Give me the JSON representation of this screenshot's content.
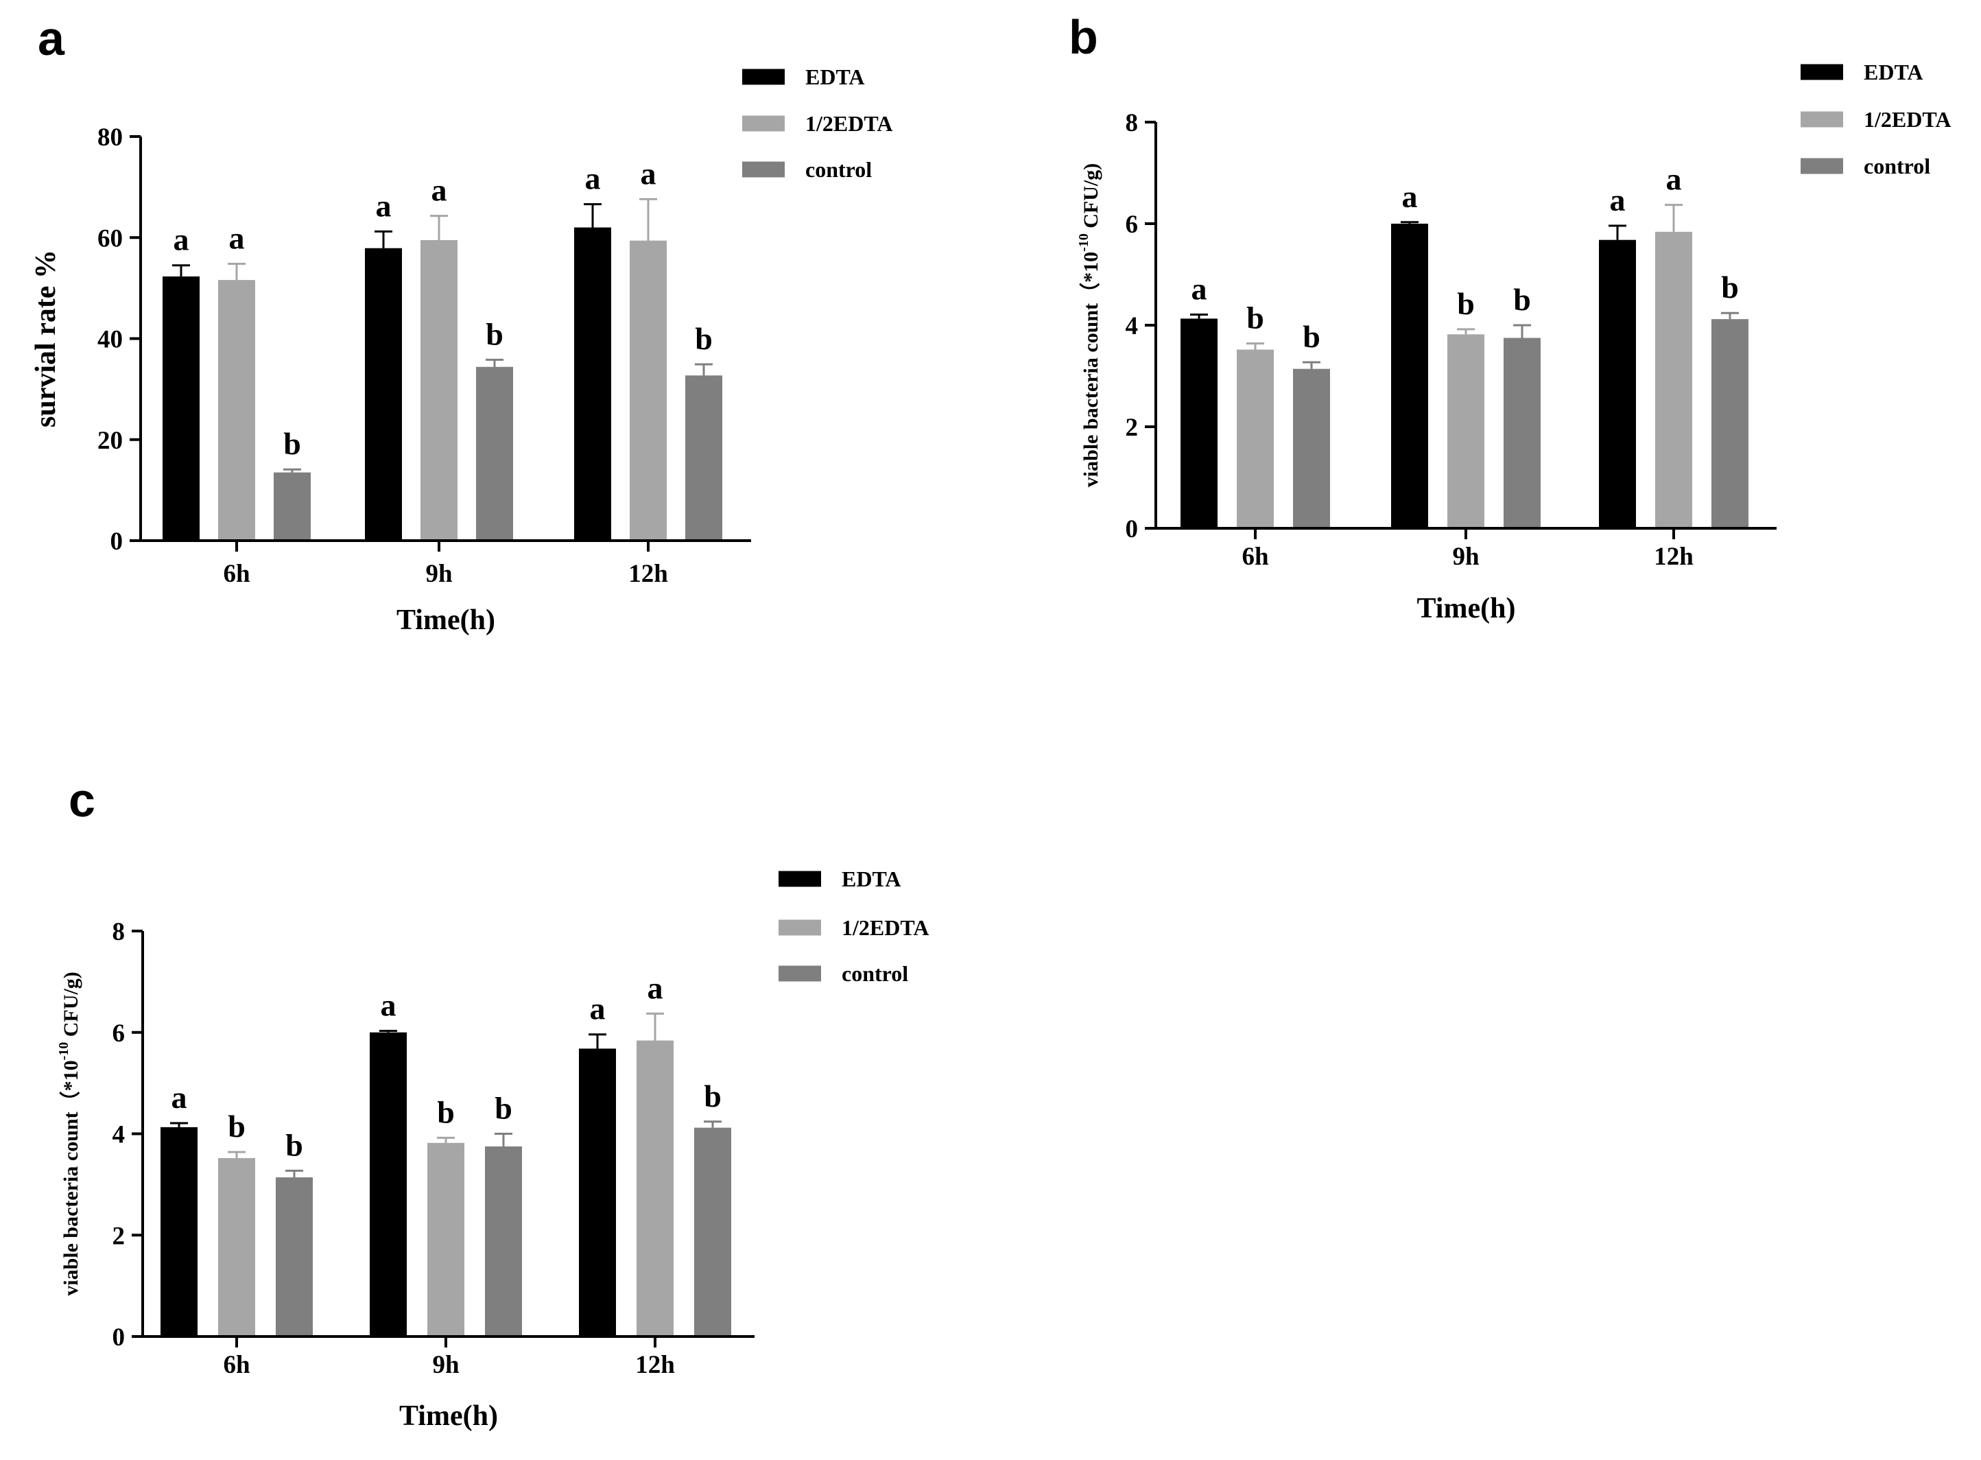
{
  "colors": {
    "EDTA": "#000000",
    "1/2EDTA": "#a6a6a6",
    "control": "#7f7f7f"
  },
  "chart_data": [
    {
      "panel": "a",
      "type": "bar",
      "title": "",
      "categories": [
        "6h",
        "9h",
        "12h"
      ],
      "xlabel": "Time(h)",
      "ylabel": "survial rate  %",
      "ylim": [
        0,
        80
      ],
      "yticks": [
        "0",
        "20",
        "40",
        "60",
        "80"
      ],
      "legend_position": "top-right",
      "series": [
        {
          "name": "EDTA",
          "values": [
            52.3,
            57.9,
            62.0
          ],
          "errors": [
            2.2,
            3.3,
            4.6
          ],
          "significance": [
            "a",
            "a",
            "a"
          ]
        },
        {
          "name": "1/2EDTA",
          "values": [
            51.6,
            59.5,
            59.4
          ],
          "errors": [
            3.2,
            4.8,
            8.2
          ],
          "significance": [
            "a",
            "a",
            "a"
          ]
        },
        {
          "name": "control",
          "values": [
            13.5,
            34.4,
            32.7
          ],
          "errors": [
            0.6,
            1.4,
            2.2
          ],
          "significance": [
            "b",
            "b",
            "b"
          ]
        }
      ]
    },
    {
      "panel": "b",
      "type": "bar",
      "title": "",
      "categories": [
        "6h",
        "9h",
        "12h"
      ],
      "xlabel": "Time(h)",
      "ylabel": "viable bacteria count（*10",
      "ylabel_sup": "-10",
      "ylabel_tail": " CFU/g)",
      "ylim": [
        0,
        8
      ],
      "yticks": [
        "0",
        "2",
        "4",
        "6",
        "8"
      ],
      "legend_position": "top-right",
      "series": [
        {
          "name": "EDTA",
          "values": [
            4.13,
            6.0,
            5.68
          ],
          "errors": [
            0.08,
            0.03,
            0.28
          ],
          "significance": [
            "a",
            "a",
            "a"
          ]
        },
        {
          "name": "1/2EDTA",
          "values": [
            3.52,
            3.82,
            5.84
          ],
          "errors": [
            0.12,
            0.1,
            0.53
          ],
          "significance": [
            "b",
            "b",
            "a"
          ]
        },
        {
          "name": "control",
          "values": [
            3.14,
            3.75,
            4.12
          ],
          "errors": [
            0.13,
            0.25,
            0.12
          ],
          "significance": [
            "b",
            "b",
            "b"
          ]
        }
      ]
    },
    {
      "panel": "c",
      "type": "bar",
      "title": "",
      "categories": [
        "6h",
        "9h",
        "12h"
      ],
      "xlabel": "Time(h)",
      "ylabel": "viable bacteria count（*10",
      "ylabel_sup": "-10",
      "ylabel_tail": " CFU/g)",
      "ylim": [
        0,
        8
      ],
      "yticks": [
        "0",
        "2",
        "4",
        "6",
        "8"
      ],
      "legend_position": "top-right",
      "series": [
        {
          "name": "EDTA",
          "values": [
            4.13,
            6.0,
            5.68
          ],
          "errors": [
            0.08,
            0.03,
            0.28
          ],
          "significance": [
            "a",
            "a",
            "a"
          ]
        },
        {
          "name": "1/2EDTA",
          "values": [
            3.52,
            3.82,
            5.84
          ],
          "errors": [
            0.12,
            0.1,
            0.53
          ],
          "significance": [
            "b",
            "b",
            "a"
          ]
        },
        {
          "name": "control",
          "values": [
            3.14,
            3.75,
            4.12
          ],
          "errors": [
            0.13,
            0.25,
            0.12
          ],
          "significance": [
            "b",
            "b",
            "b"
          ]
        }
      ]
    }
  ]
}
